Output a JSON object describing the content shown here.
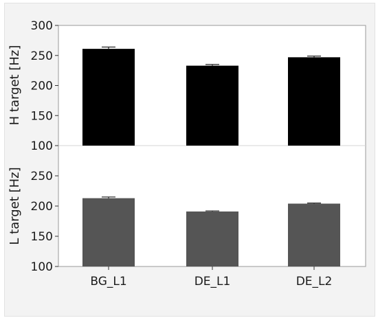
{
  "chart_data": [
    {
      "type": "bar",
      "panel": "top",
      "ylabel": "H target [Hz]",
      "ylim": [
        100,
        300
      ],
      "yticks": [
        100,
        150,
        200,
        250,
        300
      ],
      "categories": [
        "BG_L1",
        "DE_L1",
        "DE_L2"
      ],
      "series": [
        {
          "values": [
            261,
            233,
            247
          ],
          "errors": [
            3,
            2,
            2
          ],
          "color": "#000000"
        }
      ],
      "grid": false
    },
    {
      "type": "bar",
      "panel": "bottom",
      "ylabel": "L target [Hz]",
      "ylim": [
        100,
        300
      ],
      "yticks": [
        100,
        150,
        200,
        250
      ],
      "categories": [
        "BG_L1",
        "DE_L1",
        "DE_L2"
      ],
      "series": [
        {
          "values": [
            213,
            191,
            204
          ],
          "errors": [
            2,
            1,
            1
          ],
          "color": "#555555"
        }
      ],
      "grid": false
    }
  ]
}
